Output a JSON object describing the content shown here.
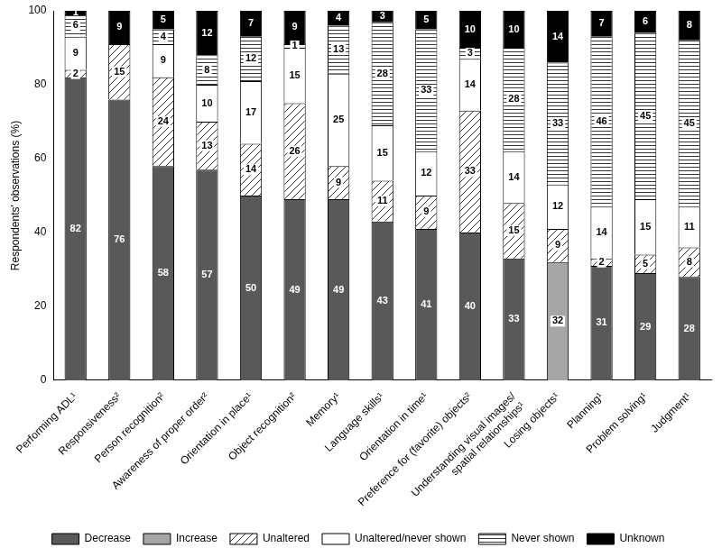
{
  "chart_data": {
    "type": "bar",
    "stacked": true,
    "grid": false,
    "legend": "bottom",
    "data_labels": true,
    "y_label": "Respondents' observations (%)",
    "ylim": [
      0,
      100
    ],
    "yticks": [
      0,
      20,
      40,
      60,
      80,
      100
    ],
    "categories": [
      "Performing ADL¹",
      "Responsiveness²",
      "Person recognition²",
      "Awareness of proper order²",
      "Orientation in place¹",
      "Object recognition²",
      "Memory¹",
      "Language skills¹",
      "Orientation in time¹",
      "Preference for (favorite) objects²",
      "Understanding visual images/ spatial relationships¹",
      "Losing objects¹",
      "Planning¹",
      "Problem solving¹",
      "Judgment¹"
    ],
    "series": [
      {
        "name": "Decrease",
        "color": "#595959",
        "values": [
          82,
          76,
          58,
          57,
          50,
          49,
          49,
          43,
          41,
          40,
          33,
          null,
          31,
          29,
          28
        ]
      },
      {
        "name": "Increase",
        "color": "#a6a6a6",
        "values": [
          null,
          null,
          null,
          null,
          null,
          null,
          null,
          null,
          null,
          null,
          null,
          32,
          null,
          null,
          null
        ]
      },
      {
        "name": "Unaltered",
        "color": "#ffffff",
        "values": [
          2,
          15,
          24,
          13,
          14,
          26,
          9,
          11,
          9,
          33,
          15,
          9,
          2,
          5,
          8
        ]
      },
      {
        "name": "Unaltered/never shown",
        "color": "#ffffff",
        "values": [
          9,
          null,
          9,
          10,
          17,
          15,
          25,
          15,
          12,
          14,
          14,
          12,
          14,
          15,
          11
        ]
      },
      {
        "name": "Never shown",
        "color": "#ffffff",
        "values": [
          6,
          null,
          4,
          8,
          12,
          1,
          13,
          28,
          33,
          3,
          28,
          33,
          46,
          45,
          45
        ]
      },
      {
        "name": "Unknown",
        "color": "#000000",
        "values": [
          1,
          9,
          5,
          12,
          7,
          9,
          4,
          3,
          5,
          10,
          10,
          14,
          7,
          6,
          8
        ]
      }
    ]
  }
}
